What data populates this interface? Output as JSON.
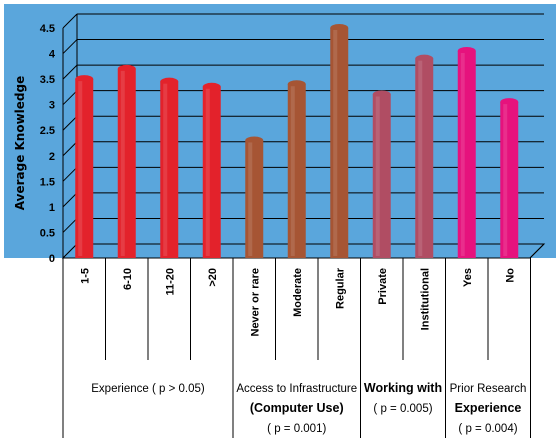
{
  "chart_data": {
    "type": "bar",
    "title": "",
    "xlabel": "",
    "ylabel": "Average Knowledge",
    "ylim": [
      0,
      4.5
    ],
    "y_ticks": [
      "0",
      "0.5",
      "1",
      "1.5",
      "2",
      "2.5",
      "3",
      "3.5",
      "4",
      "4.5"
    ],
    "grid": true,
    "background_color": "#5aa6dc",
    "categories": [
      "1-5",
      "6-10",
      "11-20",
      ">20",
      "Never or rare",
      "Moderate",
      "Regular",
      "Private",
      "Institutional",
      "Yes",
      "No"
    ],
    "values": [
      3.5,
      3.7,
      3.45,
      3.35,
      2.3,
      3.4,
      4.5,
      3.2,
      3.9,
      4.05,
      3.05
    ],
    "colors": [
      "#e3222b",
      "#e3222b",
      "#e3222b",
      "#e3222b",
      "#a65534",
      "#a65534",
      "#a65534",
      "#b04d63",
      "#b04d63",
      "#e6127d",
      "#e6127d"
    ],
    "groups": [
      {
        "lines": [
          "Experience ( p > 0.05)"
        ],
        "bold_lines": [
          false
        ],
        "start": 0,
        "end": 3
      },
      {
        "lines": [
          "Access to Infrastructure",
          "(Computer Use)",
          "( p = 0.001)"
        ],
        "bold_lines": [
          false,
          true,
          false
        ],
        "start": 4,
        "end": 6
      },
      {
        "lines": [
          "Working with",
          "( p = 0.005)"
        ],
        "bold_lines": [
          true,
          false
        ],
        "start": 7,
        "end": 8
      },
      {
        "lines": [
          "Prior Research",
          "Experience",
          "( p = 0.004)"
        ],
        "bold_lines": [
          false,
          true,
          false
        ],
        "start": 9,
        "end": 10
      }
    ]
  }
}
